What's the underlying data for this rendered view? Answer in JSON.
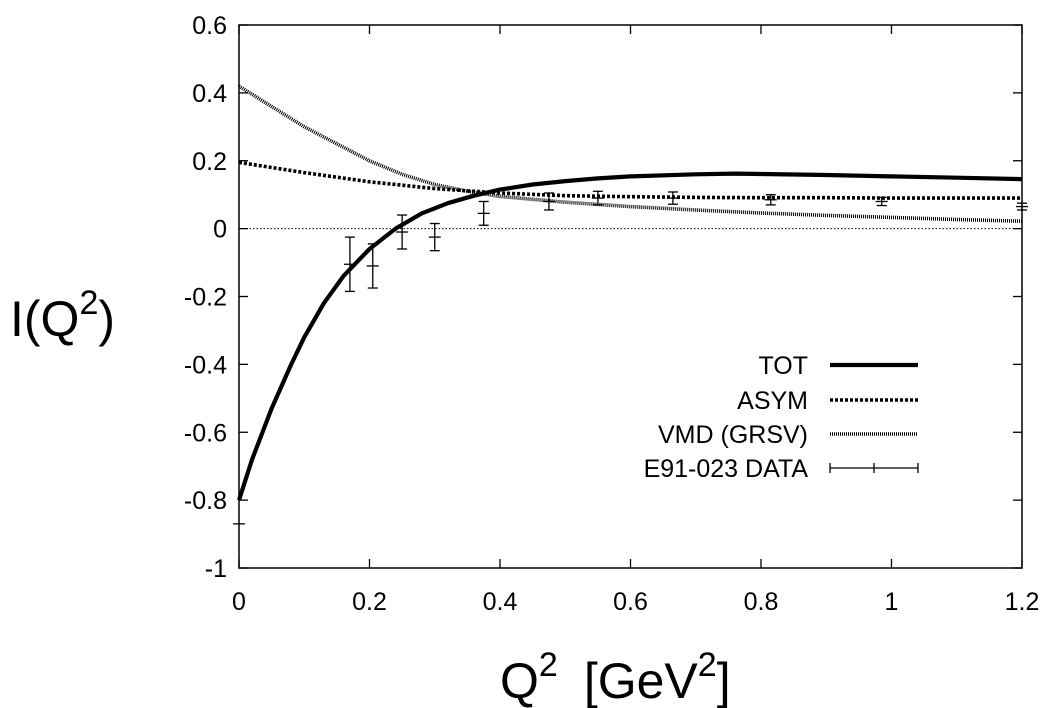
{
  "chart_data": {
    "type": "line",
    "xlabel": {
      "base": "Q",
      "sup": "2",
      "unit_open": "[GeV",
      "unit_sup": "2",
      "unit_close": "]"
    },
    "ylabel": {
      "base": "I(Q",
      "sup": "2",
      "close": ")"
    },
    "xlim": [
      0,
      1.2
    ],
    "ylim": [
      -1,
      0.6
    ],
    "xticks": [
      0,
      0.2,
      0.4,
      0.6,
      0.8,
      1,
      1.2
    ],
    "xtick_labels": [
      "0",
      "0.2",
      "0.4",
      "0.6",
      "0.8",
      "1",
      "1.2"
    ],
    "yticks": [
      -1,
      -0.8,
      -0.6,
      -0.4,
      -0.2,
      0,
      0.2,
      0.4,
      0.6
    ],
    "ytick_labels": [
      "-1",
      "-0.8",
      "-0.6",
      "-0.4",
      "-0.2",
      "0",
      "0.2",
      "0.4",
      "0.6"
    ],
    "grid": false,
    "zero_line": true,
    "legend_position": "lower-right",
    "series": [
      {
        "name": "TOT",
        "style": "solid-thick",
        "color": "#000000",
        "x": [
          0,
          0.02,
          0.05,
          0.08,
          0.1,
          0.13,
          0.16,
          0.2,
          0.24,
          0.28,
          0.32,
          0.36,
          0.4,
          0.45,
          0.5,
          0.55,
          0.6,
          0.7,
          0.76,
          0.8,
          0.9,
          1.0,
          1.1,
          1.2
        ],
        "y": [
          -0.8,
          -0.68,
          -0.53,
          -0.4,
          -0.32,
          -0.22,
          -0.14,
          -0.06,
          0.0,
          0.045,
          0.075,
          0.097,
          0.115,
          0.13,
          0.14,
          0.148,
          0.154,
          0.16,
          0.162,
          0.161,
          0.158,
          0.154,
          0.15,
          0.146
        ]
      },
      {
        "name": "ASYM",
        "style": "dashed-thick",
        "color": "#000000",
        "x": [
          0,
          0.1,
          0.2,
          0.3,
          0.4,
          0.5,
          0.6,
          0.7,
          0.8,
          0.9,
          1.0,
          1.1,
          1.2
        ],
        "y": [
          0.195,
          0.165,
          0.138,
          0.118,
          0.105,
          0.097,
          0.094,
          0.092,
          0.091,
          0.091,
          0.09,
          0.09,
          0.09
        ]
      },
      {
        "name": "VMD (GRSV)",
        "style": "dotted-thick",
        "color": "#000000",
        "x": [
          0,
          0.05,
          0.1,
          0.15,
          0.2,
          0.25,
          0.3,
          0.35,
          0.4,
          0.5,
          0.6,
          0.7,
          0.8,
          0.9,
          1.0,
          1.1,
          1.2
        ],
        "y": [
          0.42,
          0.36,
          0.3,
          0.25,
          0.2,
          0.16,
          0.13,
          0.11,
          0.095,
          0.078,
          0.065,
          0.055,
          0.046,
          0.039,
          0.033,
          0.027,
          0.022
        ]
      }
    ],
    "data_points": {
      "name": "E91-023 DATA",
      "points": [
        {
          "x": 0.0,
          "y": -0.87,
          "err": 0.0
        },
        {
          "x": 0.17,
          "y": -0.105,
          "err": 0.08
        },
        {
          "x": 0.205,
          "y": -0.11,
          "err": 0.065
        },
        {
          "x": 0.25,
          "y": -0.01,
          "err": 0.05
        },
        {
          "x": 0.3,
          "y": -0.025,
          "err": 0.04
        },
        {
          "x": 0.375,
          "y": 0.045,
          "err": 0.035
        },
        {
          "x": 0.475,
          "y": 0.08,
          "err": 0.025
        },
        {
          "x": 0.55,
          "y": 0.09,
          "err": 0.02
        },
        {
          "x": 0.665,
          "y": 0.09,
          "err": 0.018
        },
        {
          "x": 0.815,
          "y": 0.085,
          "err": 0.015
        },
        {
          "x": 0.985,
          "y": 0.08,
          "err": 0.012
        },
        {
          "x": 1.2,
          "y": 0.065,
          "err": 0.01
        }
      ]
    }
  }
}
